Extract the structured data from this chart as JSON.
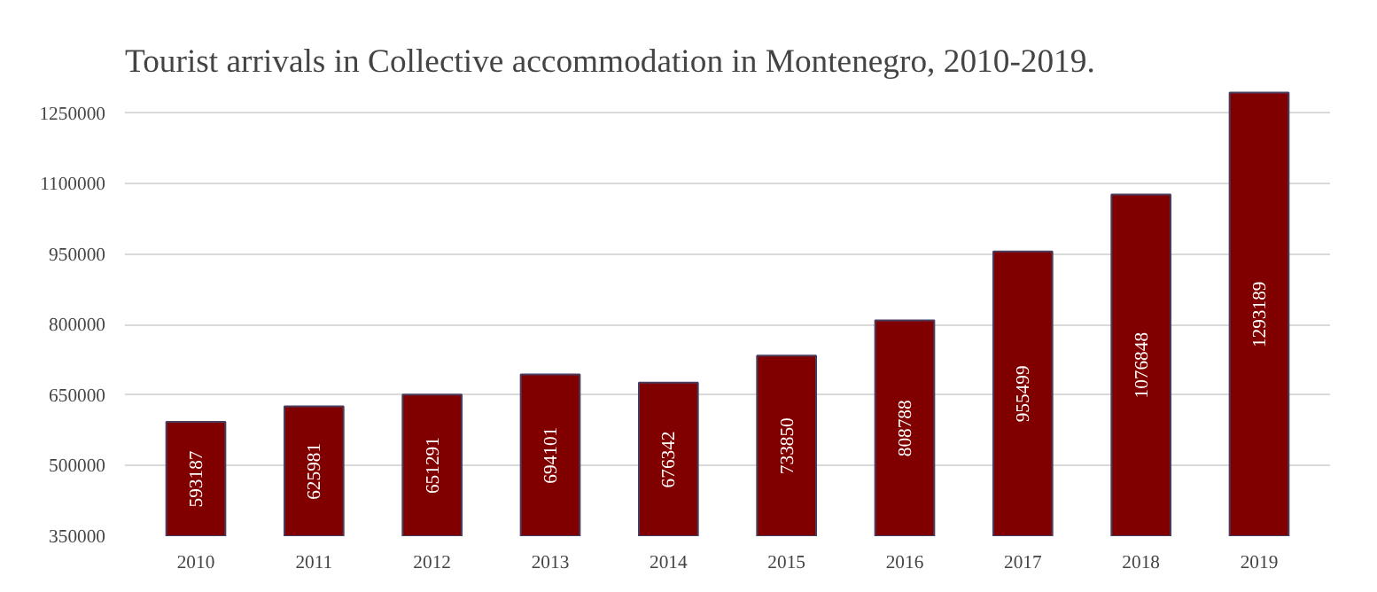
{
  "chart_data": {
    "type": "bar",
    "title": "Tourist arrivals in Collective accommodation in Montenegro, 2010-2019.",
    "categories": [
      "2010",
      "2011",
      "2012",
      "2013",
      "2014",
      "2015",
      "2016",
      "2017",
      "2018",
      "2019"
    ],
    "values": [
      593187,
      625981,
      651291,
      694101,
      676342,
      733850,
      808788,
      955499,
      1076848,
      1293189
    ],
    "color": "#800000",
    "ylim": [
      350000,
      1300000
    ],
    "yticks": [
      350000,
      500000,
      650000,
      800000,
      950000,
      1100000,
      1250000
    ],
    "grid": "y",
    "data_labels": true
  }
}
